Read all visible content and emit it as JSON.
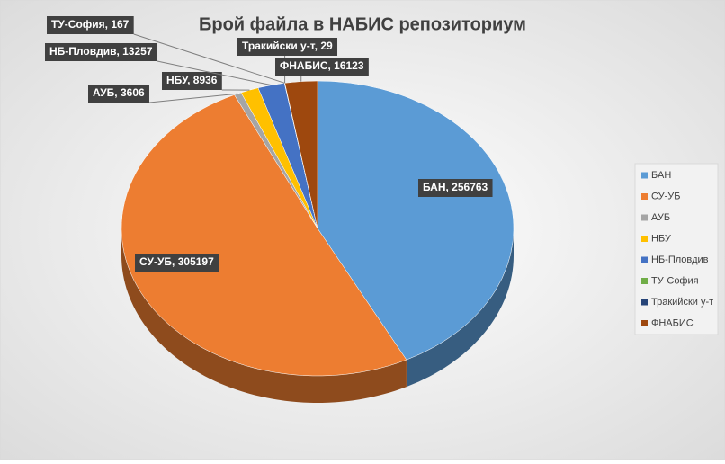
{
  "chart_data": {
    "type": "pie3d",
    "title": "Брой файла в НАБИС репозиториум",
    "categories": [
      "БАН",
      "СУ-УБ",
      "АУБ",
      "НБУ",
      "НБ-Пловдив",
      "ТУ-София",
      "Тракийски у-т",
      "ФНАБИС"
    ],
    "values": [
      256763,
      305197,
      3606,
      8936,
      13257,
      167,
      29,
      16123
    ],
    "value_labels": [
      "БАН, 256763",
      "СУ-УБ, 305197",
      "АУБ, 3606",
      "НБУ, 8936",
      "НБ-Пловдив, 13257",
      "ТУ-София, 167",
      "Тракийски у-т, 29",
      "ФНАБИС, 16123"
    ],
    "colors": [
      "#5b9bd5",
      "#ed7d31",
      "#a5a5a5",
      "#ffc000",
      "#4472c4",
      "#70ad47",
      "#264478",
      "#9e480e"
    ],
    "legend": "right"
  }
}
